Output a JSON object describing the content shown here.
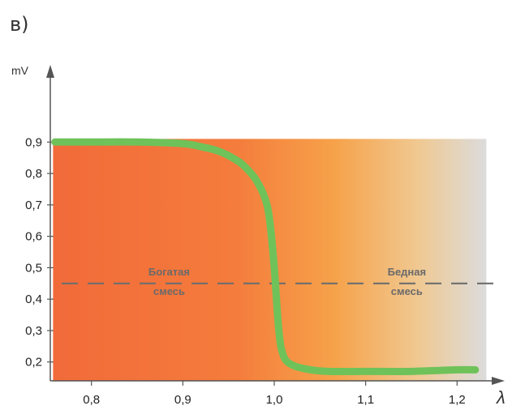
{
  "figure": {
    "panel_label": "в)"
  },
  "chart_data": {
    "type": "line",
    "xlabel": "λ",
    "ylabel": "mV",
    "xlim": [
      0.755,
      1.245
    ],
    "ylim": [
      0.14,
      1.12
    ],
    "x_ticks": [
      0.8,
      0.9,
      1.0,
      1.1,
      1.2
    ],
    "x_tick_labels": [
      "0,8",
      "0,9",
      "1,0",
      "1,1",
      "1,2"
    ],
    "y_ticks": [
      0.2,
      0.3,
      0.4,
      0.5,
      0.6,
      0.7,
      0.8,
      0.9
    ],
    "y_tick_labels": [
      "0,2",
      "0,3",
      "0,4",
      "0,5",
      "0,6",
      "0,7",
      "0,8",
      "0,9"
    ],
    "grid": false,
    "shaded_region": {
      "x_from": 0.758,
      "x_to": 1.232,
      "y_from": 0.14,
      "y_to": 0.91,
      "colors": [
        "#f26a3a",
        "#f47c3c",
        "#f6a24a",
        "#f0c890",
        "#dcdcdc"
      ]
    },
    "series": [
      {
        "color": "#6fc25a",
        "x": [
          0.76,
          0.8,
          0.85,
          0.9,
          0.92,
          0.94,
          0.96,
          0.97,
          0.98,
          0.99,
          0.995,
          1.0,
          1.005,
          1.01,
          1.02,
          1.04,
          1.06,
          1.1,
          1.15,
          1.2,
          1.22
        ],
        "y": [
          0.9,
          0.9,
          0.9,
          0.895,
          0.885,
          0.87,
          0.84,
          0.815,
          0.78,
          0.72,
          0.65,
          0.5,
          0.3,
          0.22,
          0.19,
          0.175,
          0.17,
          0.17,
          0.17,
          0.175,
          0.175
        ]
      }
    ],
    "threshold": {
      "y": 0.45,
      "style": "dashed",
      "color": "#6e6e6e"
    },
    "annotations": [
      {
        "lines": [
          "Богатая",
          "смесь"
        ],
        "x": 0.885,
        "y": 0.455
      },
      {
        "lines": [
          "Бедная",
          "смесь"
        ],
        "x": 1.145,
        "y": 0.455
      }
    ]
  }
}
